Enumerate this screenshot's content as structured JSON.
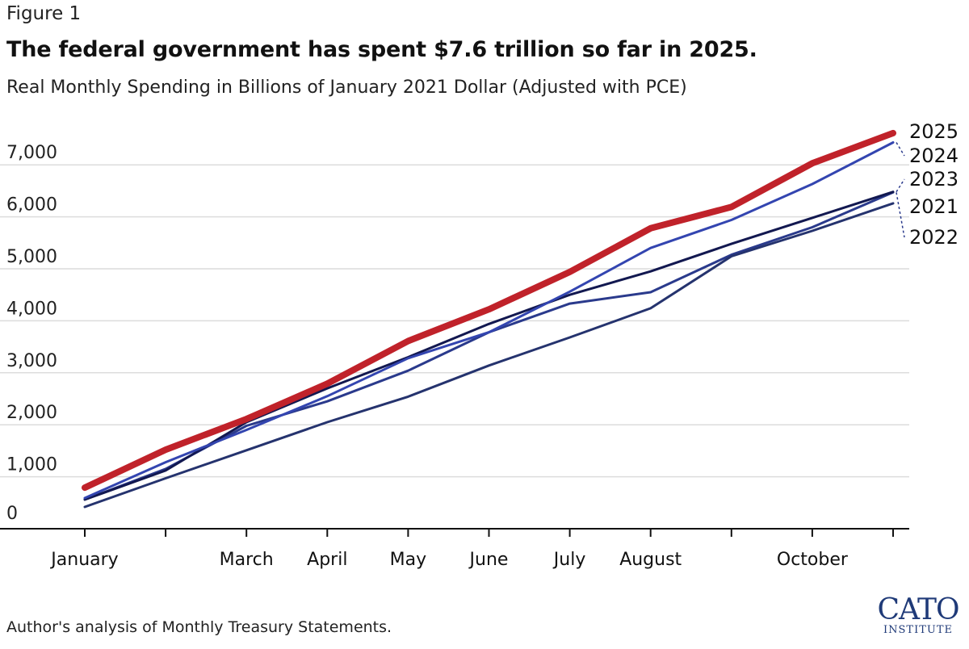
{
  "figure_label": "Figure 1",
  "title": "The federal government has spent $7.6 trillion so far in 2025.",
  "subtitle": "Real Monthly Spending in Billions of January 2021 Dollar (Adjusted with PCE)",
  "source": "Author's analysis of Monthly Treasury Statements.",
  "logo": {
    "main": "CATO",
    "sub": "INSTITUTE"
  },
  "chart_data": {
    "type": "line",
    "title": "The federal government has spent $7.6 trillion so far in 2025.",
    "ylabel": "Real Monthly Spending in Billions of January 2021 Dollar (Adjusted with PCE)",
    "xlabel": "",
    "ylim": [
      0,
      7800
    ],
    "yticks": [
      0,
      1000,
      2000,
      3000,
      4000,
      5000,
      6000,
      7000
    ],
    "ytick_labels": [
      "0",
      "1,000",
      "2,000",
      "3,000",
      "4,000",
      "5,000",
      "6,000",
      "7,000"
    ],
    "x": [
      1,
      2,
      3,
      4,
      5,
      6,
      7,
      8,
      9,
      10,
      11
    ],
    "xtick_labels": [
      "January",
      "",
      "March",
      "April",
      "May",
      "June",
      "July",
      "August",
      "",
      "October",
      ""
    ],
    "grid": true,
    "series": [
      {
        "name": "2022",
        "color": "#2a3a8c",
        "width": 3,
        "values": [
          560,
          1150,
          1980,
          2450,
          3040,
          3780,
          4330,
          4550,
          5270,
          5800,
          6470
        ]
      },
      {
        "name": "2021",
        "color": "#25336e",
        "width": 3,
        "values": [
          420,
          970,
          1510,
          2050,
          2540,
          3140,
          3680,
          4240,
          5240,
          5730,
          6260
        ]
      },
      {
        "name": "2023",
        "color": "#121850",
        "width": 3,
        "values": [
          560,
          1120,
          2050,
          2700,
          3300,
          3940,
          4500,
          4950,
          5480,
          5980,
          6480
        ]
      },
      {
        "name": "2024",
        "color": "#3345b0",
        "width": 3,
        "values": [
          590,
          1280,
          1900,
          2550,
          3280,
          3780,
          4560,
          5400,
          5940,
          6630,
          7430
        ]
      },
      {
        "name": "2025",
        "color": "#c0222a",
        "width": 8,
        "values": [
          790,
          1520,
          2110,
          2790,
          3610,
          4220,
          4940,
          5780,
          6190,
          7030,
          7610
        ]
      }
    ],
    "end_labels": [
      {
        "series": "2025",
        "text": "2025"
      },
      {
        "series": "2024",
        "text": "2024"
      },
      {
        "series": "2023",
        "text": "2023"
      },
      {
        "series": "2021",
        "text": "2021"
      },
      {
        "series": "2022",
        "text": "2022"
      }
    ]
  }
}
